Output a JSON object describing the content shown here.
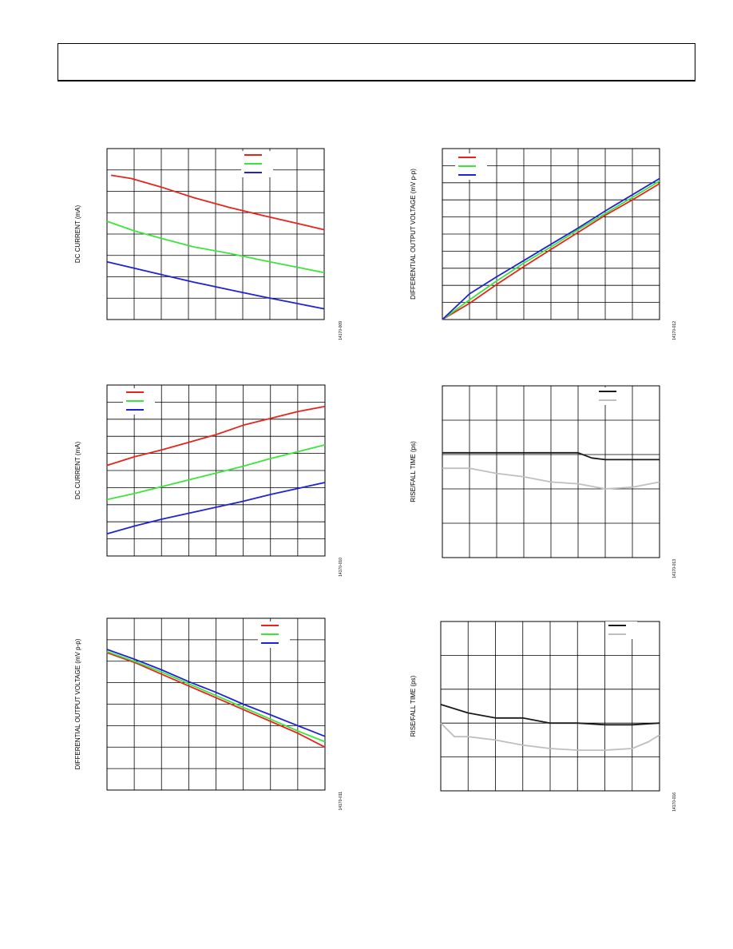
{
  "chart_data": [
    {
      "id": "c1",
      "type": "line",
      "ylabel": "DC CURRENT (mA)",
      "fig_id": "14170-009",
      "grid": true,
      "xlim": [
        0,
        8
      ],
      "ylim": [
        0,
        8
      ],
      "grid_x": 8,
      "grid_y": 8,
      "legend": "top-right",
      "series": [
        {
          "color": "#e8231d",
          "points": [
            [
              0.15,
              6.75
            ],
            [
              0.9,
              6.6
            ],
            [
              2,
              6.2
            ],
            [
              3.2,
              5.7
            ],
            [
              4.5,
              5.25
            ],
            [
              5.8,
              4.85
            ],
            [
              7,
              4.5
            ],
            [
              8,
              4.2
            ]
          ]
        },
        {
          "color": "#3be63a",
          "points": [
            [
              0,
              4.6
            ],
            [
              1,
              4.15
            ],
            [
              2,
              3.8
            ],
            [
              3.2,
              3.4
            ],
            [
              4.5,
              3.1
            ],
            [
              5.8,
              2.75
            ],
            [
              7,
              2.45
            ],
            [
              8,
              2.2
            ]
          ]
        },
        {
          "color": "#1f23d6",
          "points": [
            [
              0,
              2.7
            ],
            [
              1,
              2.4
            ],
            [
              2,
              2.1
            ],
            [
              3.2,
              1.75
            ],
            [
              4.5,
              1.4
            ],
            [
              5.8,
              1.05
            ],
            [
              7,
              0.75
            ],
            [
              8,
              0.5
            ]
          ]
        }
      ]
    },
    {
      "id": "c2",
      "type": "line",
      "ylabel": "DIFFERENTIAL OUTPUT VOLTAGE (mV p-p)",
      "fig_id": "14170-012",
      "grid": true,
      "xlim": [
        0,
        8
      ],
      "ylim": [
        0,
        10
      ],
      "grid_x": 8,
      "grid_y": 10,
      "legend": "top-left",
      "series": [
        {
          "color": "#e8231d",
          "points": [
            [
              0,
              0
            ],
            [
              1,
              0.95
            ],
            [
              2,
              2.05
            ],
            [
              3,
              3.1
            ],
            [
              4,
              4.1
            ],
            [
              5,
              5.1
            ],
            [
              6,
              6.1
            ],
            [
              7,
              7.0
            ],
            [
              8,
              7.95
            ]
          ]
        },
        {
          "color": "#3be63a",
          "points": [
            [
              0,
              0
            ],
            [
              1,
              1.15
            ],
            [
              2,
              2.25
            ],
            [
              3,
              3.3
            ],
            [
              4,
              4.25
            ],
            [
              5,
              5.25
            ],
            [
              6,
              6.2
            ],
            [
              7,
              7.15
            ],
            [
              8,
              8.1
            ]
          ]
        },
        {
          "color": "#1f23d6",
          "points": [
            [
              0,
              0
            ],
            [
              1,
              1.5
            ],
            [
              2,
              2.5
            ],
            [
              3,
              3.45
            ],
            [
              4,
              4.4
            ],
            [
              5,
              5.35
            ],
            [
              6,
              6.35
            ],
            [
              7,
              7.3
            ],
            [
              8,
              8.25
            ]
          ]
        }
      ]
    },
    {
      "id": "c3",
      "type": "line",
      "ylabel": "DC CURRENT (mA)",
      "fig_id": "14170-010",
      "grid": true,
      "xlim": [
        0,
        8
      ],
      "ylim": [
        0,
        10
      ],
      "grid_x": 8,
      "grid_y": 10,
      "legend": "top-left",
      "series": [
        {
          "color": "#e8231d",
          "points": [
            [
              0,
              5.3
            ],
            [
              1,
              5.8
            ],
            [
              2,
              6.2
            ],
            [
              3,
              6.65
            ],
            [
              4,
              7.1
            ],
            [
              5,
              7.65
            ],
            [
              6,
              8.05
            ],
            [
              7,
              8.45
            ],
            [
              8,
              8.75
            ]
          ]
        },
        {
          "color": "#3be63a",
          "points": [
            [
              0,
              3.3
            ],
            [
              1,
              3.65
            ],
            [
              2,
              4.05
            ],
            [
              3,
              4.45
            ],
            [
              4,
              4.85
            ],
            [
              5,
              5.25
            ],
            [
              6,
              5.7
            ],
            [
              7,
              6.1
            ],
            [
              8,
              6.5
            ]
          ]
        },
        {
          "color": "#1f23d6",
          "points": [
            [
              0,
              1.3
            ],
            [
              1,
              1.75
            ],
            [
              2,
              2.15
            ],
            [
              3,
              2.5
            ],
            [
              4,
              2.85
            ],
            [
              5,
              3.2
            ],
            [
              6,
              3.6
            ],
            [
              7,
              3.95
            ],
            [
              8,
              4.3
            ]
          ]
        }
      ]
    },
    {
      "id": "c4",
      "type": "line",
      "ylabel": "RISE/FALL TIME (ps)",
      "fig_id": "14170-013",
      "grid": true,
      "xlim": [
        0,
        8
      ],
      "ylim": [
        0,
        5
      ],
      "grid_x": 8,
      "grid_y": 5,
      "legend": "top-right",
      "series": [
        {
          "color": "#1a1a1a",
          "points": [
            [
              0,
              3.05
            ],
            [
              1,
              3.05
            ],
            [
              2,
              3.05
            ],
            [
              3,
              3.05
            ],
            [
              4,
              3.05
            ],
            [
              5,
              3.05
            ],
            [
              5.5,
              2.9
            ],
            [
              6,
              2.85
            ],
            [
              7,
              2.85
            ],
            [
              8,
              2.85
            ]
          ]
        },
        {
          "color": "#bfbfbf",
          "points": [
            [
              0,
              2.6
            ],
            [
              1,
              2.6
            ],
            [
              2,
              2.45
            ],
            [
              3,
              2.35
            ],
            [
              4,
              2.2
            ],
            [
              5,
              2.15
            ],
            [
              6,
              2.0
            ],
            [
              7,
              2.05
            ],
            [
              8,
              2.2
            ]
          ]
        }
      ]
    },
    {
      "id": "c5",
      "type": "line",
      "ylabel": "DIFFERENTIAL OUTPUT VOLTAGE (mV p-p)",
      "fig_id": "14170-011",
      "grid": true,
      "xlim": [
        0,
        8
      ],
      "ylim": [
        0,
        8
      ],
      "grid_x": 8,
      "grid_y": 8,
      "legend": "top-right",
      "series": [
        {
          "color": "#e8231d",
          "points": [
            [
              0,
              6.4
            ],
            [
              1,
              5.95
            ],
            [
              2,
              5.4
            ],
            [
              3,
              4.85
            ],
            [
              4,
              4.3
            ],
            [
              5,
              3.75
            ],
            [
              6,
              3.2
            ],
            [
              7,
              2.65
            ],
            [
              8,
              2.0
            ]
          ]
        },
        {
          "color": "#3be63a",
          "points": [
            [
              0,
              6.45
            ],
            [
              1,
              6.0
            ],
            [
              2,
              5.5
            ],
            [
              3,
              4.95
            ],
            [
              4,
              4.4
            ],
            [
              5,
              3.85
            ],
            [
              6,
              3.3
            ],
            [
              7,
              2.75
            ],
            [
              8,
              2.25
            ]
          ]
        },
        {
          "color": "#1f23d6",
          "points": [
            [
              0,
              6.55
            ],
            [
              1,
              6.1
            ],
            [
              2,
              5.6
            ],
            [
              3,
              5.05
            ],
            [
              4,
              4.55
            ],
            [
              5,
              4.0
            ],
            [
              6,
              3.5
            ],
            [
              7,
              3.0
            ],
            [
              8,
              2.5
            ]
          ]
        }
      ]
    },
    {
      "id": "c6",
      "type": "line",
      "ylabel": "RISE/FALL TIME (ps)",
      "fig_id": "14170-016",
      "grid": true,
      "xlim": [
        0,
        8
      ],
      "ylim": [
        0,
        5
      ],
      "grid_x": 8,
      "grid_y": 5,
      "legend": "top-right",
      "series": [
        {
          "color": "#1a1a1a",
          "points": [
            [
              0,
              2.55
            ],
            [
              1,
              2.3
            ],
            [
              2,
              2.15
            ],
            [
              3,
              2.15
            ],
            [
              4,
              2.0
            ],
            [
              5,
              2.0
            ],
            [
              6,
              1.95
            ],
            [
              7,
              1.95
            ],
            [
              8,
              2.0
            ]
          ]
        },
        {
          "color": "#bfbfbf",
          "points": [
            [
              0,
              2.0
            ],
            [
              0.5,
              1.6
            ],
            [
              1,
              1.6
            ],
            [
              2,
              1.5
            ],
            [
              3,
              1.35
            ],
            [
              4,
              1.25
            ],
            [
              5,
              1.2
            ],
            [
              6,
              1.2
            ],
            [
              7,
              1.25
            ],
            [
              7.6,
              1.45
            ],
            [
              8,
              1.65
            ]
          ]
        }
      ]
    }
  ]
}
